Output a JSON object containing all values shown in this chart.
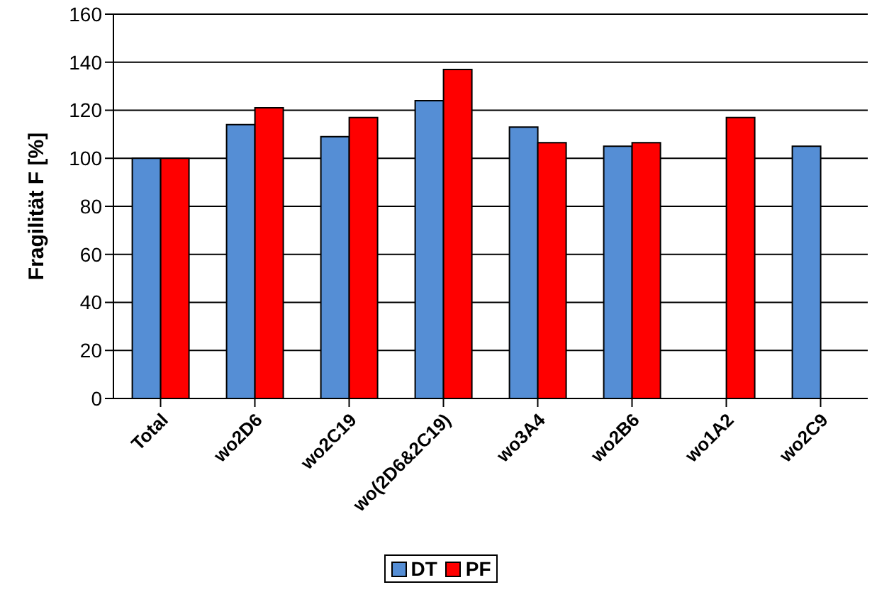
{
  "chart_data": {
    "type": "bar",
    "ylabel": "Fragilität F [%]",
    "categories": [
      "Total",
      "wo2D6",
      "wo2C19",
      "wo(2D6&2C19)",
      "wo3A4",
      "wo2B6",
      "wo1A2",
      "wo2C9"
    ],
    "series": [
      {
        "name": "DT",
        "color": "#558ed5",
        "values": [
          100,
          114,
          109,
          124,
          113,
          105,
          null,
          105
        ]
      },
      {
        "name": "PF",
        "color": "#ff0000",
        "values": [
          100,
          121,
          117,
          137,
          106.5,
          106.5,
          117,
          null
        ]
      }
    ],
    "ylim": [
      0,
      160
    ],
    "yticks": [
      0,
      20,
      40,
      60,
      80,
      100,
      120,
      140,
      160
    ],
    "grid": "y",
    "legend": "bottom"
  }
}
